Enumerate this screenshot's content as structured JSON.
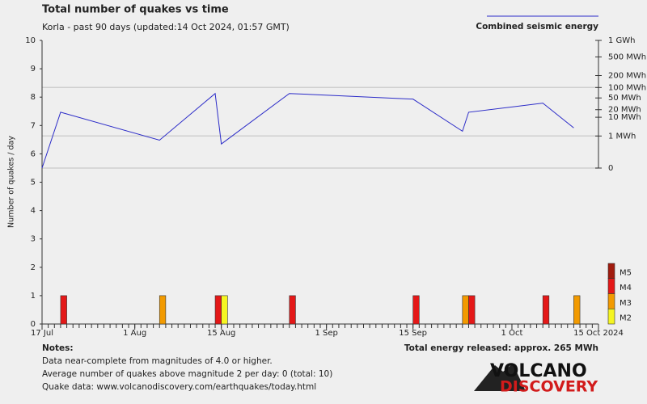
{
  "chart_data": {
    "type": "bar",
    "title": "Total number of quakes vs time",
    "subtitle": "Korla - past 90 days (updated:14 Oct 2024, 01:57 GMT)",
    "ylabel": "Number of quakes / day",
    "xlim": [
      "2024-07-17",
      "2024-10-15"
    ],
    "xticks": [
      {
        "value": "2024-07-17",
        "label": "17 Jul"
      },
      {
        "value": "2024-08-01",
        "label": "1 Aug"
      },
      {
        "value": "2024-08-15",
        "label": "15 Aug"
      },
      {
        "value": "2024-09-01",
        "label": "1 Sep"
      },
      {
        "value": "2024-09-15",
        "label": "15 Sep"
      },
      {
        "value": "2024-10-01",
        "label": "1 Oct"
      },
      {
        "value": "2024-10-15",
        "label": "15 Oct 2024"
      }
    ],
    "ylim": [
      0,
      10
    ],
    "yticks": [
      0,
      1,
      2,
      3,
      4,
      5,
      6,
      7,
      8,
      9,
      10
    ],
    "y2lim": [
      0,
      1000
    ],
    "y2scale": "power",
    "y2exponent": 0.2,
    "y2ticks": [
      {
        "value": 1000,
        "label": "1 GWh"
      },
      {
        "value": 500,
        "label": "500 MWh"
      },
      {
        "value": 200,
        "label": "200 MWh"
      },
      {
        "value": 100,
        "label": "100 MWh",
        "grid": true
      },
      {
        "value": 50,
        "label": "50 MWh"
      },
      {
        "value": 20,
        "label": "20 MWh"
      },
      {
        "value": 10,
        "label": "10 MWh"
      },
      {
        "value": 1,
        "label": "1 MWh",
        "grid": true
      },
      {
        "value": 0,
        "label": "0",
        "grid": true
      }
    ],
    "series": [
      {
        "name": "Combined seismic energy",
        "type": "line",
        "axis": "y2",
        "color": "#2b2bc8",
        "x": [
          "2024-07-17",
          "2024-07-20",
          "2024-08-05",
          "2024-08-14",
          "2024-08-15",
          "2024-08-26",
          "2024-09-15",
          "2024-09-23",
          "2024-09-24",
          "2024-10-06",
          "2024-10-11"
        ],
        "values": [
          0,
          16,
          0.5,
          68,
          0.24,
          68,
          46,
          2,
          16,
          34,
          3.1
        ]
      },
      {
        "name": "M5",
        "color": "#a11b0e",
        "x": [],
        "values": []
      },
      {
        "name": "M4",
        "color": "#e41818",
        "x": [
          "2024-07-20",
          "2024-08-14",
          "2024-08-26",
          "2024-09-15",
          "2024-09-24",
          "2024-10-06"
        ],
        "values": [
          1,
          1,
          1,
          1,
          1,
          1
        ]
      },
      {
        "name": "M3",
        "color": "#f29a00",
        "x": [
          "2024-08-05",
          "2024-09-23",
          "2024-10-11"
        ],
        "values": [
          1,
          1,
          1
        ]
      },
      {
        "name": "M2",
        "color": "#f5f522",
        "x": [
          "2024-08-15"
        ],
        "values": [
          1
        ]
      }
    ]
  },
  "notes": {
    "title": "Notes:",
    "lines": [
      "Data near-complete from magnitudes of 4.0 or higher.",
      "Average number of quakes above magnitude 2 per day: 0 (total: 10)",
      "Quake data: www.volcanodiscovery.com/earthquakes/today.html"
    ]
  },
  "total": "Total energy released: approx. 265 MWh",
  "logo": [
    "VOLCANO",
    "DISCOVERY"
  ]
}
